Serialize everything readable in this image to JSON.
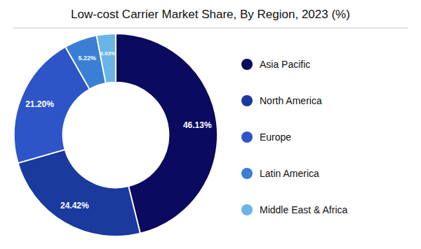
{
  "chart_data": {
    "type": "donut",
    "title": "Low-cost Carrier Market Share, By Region, 2023 (%)",
    "categories": [
      "Asia Pacific",
      "North America",
      "Europe",
      "Latin America",
      "Middle East & Africa"
    ],
    "values": [
      46.13,
      24.42,
      21.2,
      5.22,
      3.03
    ],
    "value_labels": [
      "46.13%",
      "24.42%",
      "21.20%",
      "5.22%",
      "3.03%"
    ],
    "colors": [
      "#0a0a5e",
      "#1a3a9e",
      "#2d55c8",
      "#3a7fd4",
      "#6ab4e8"
    ],
    "data_labels": true,
    "legend": "right"
  }
}
